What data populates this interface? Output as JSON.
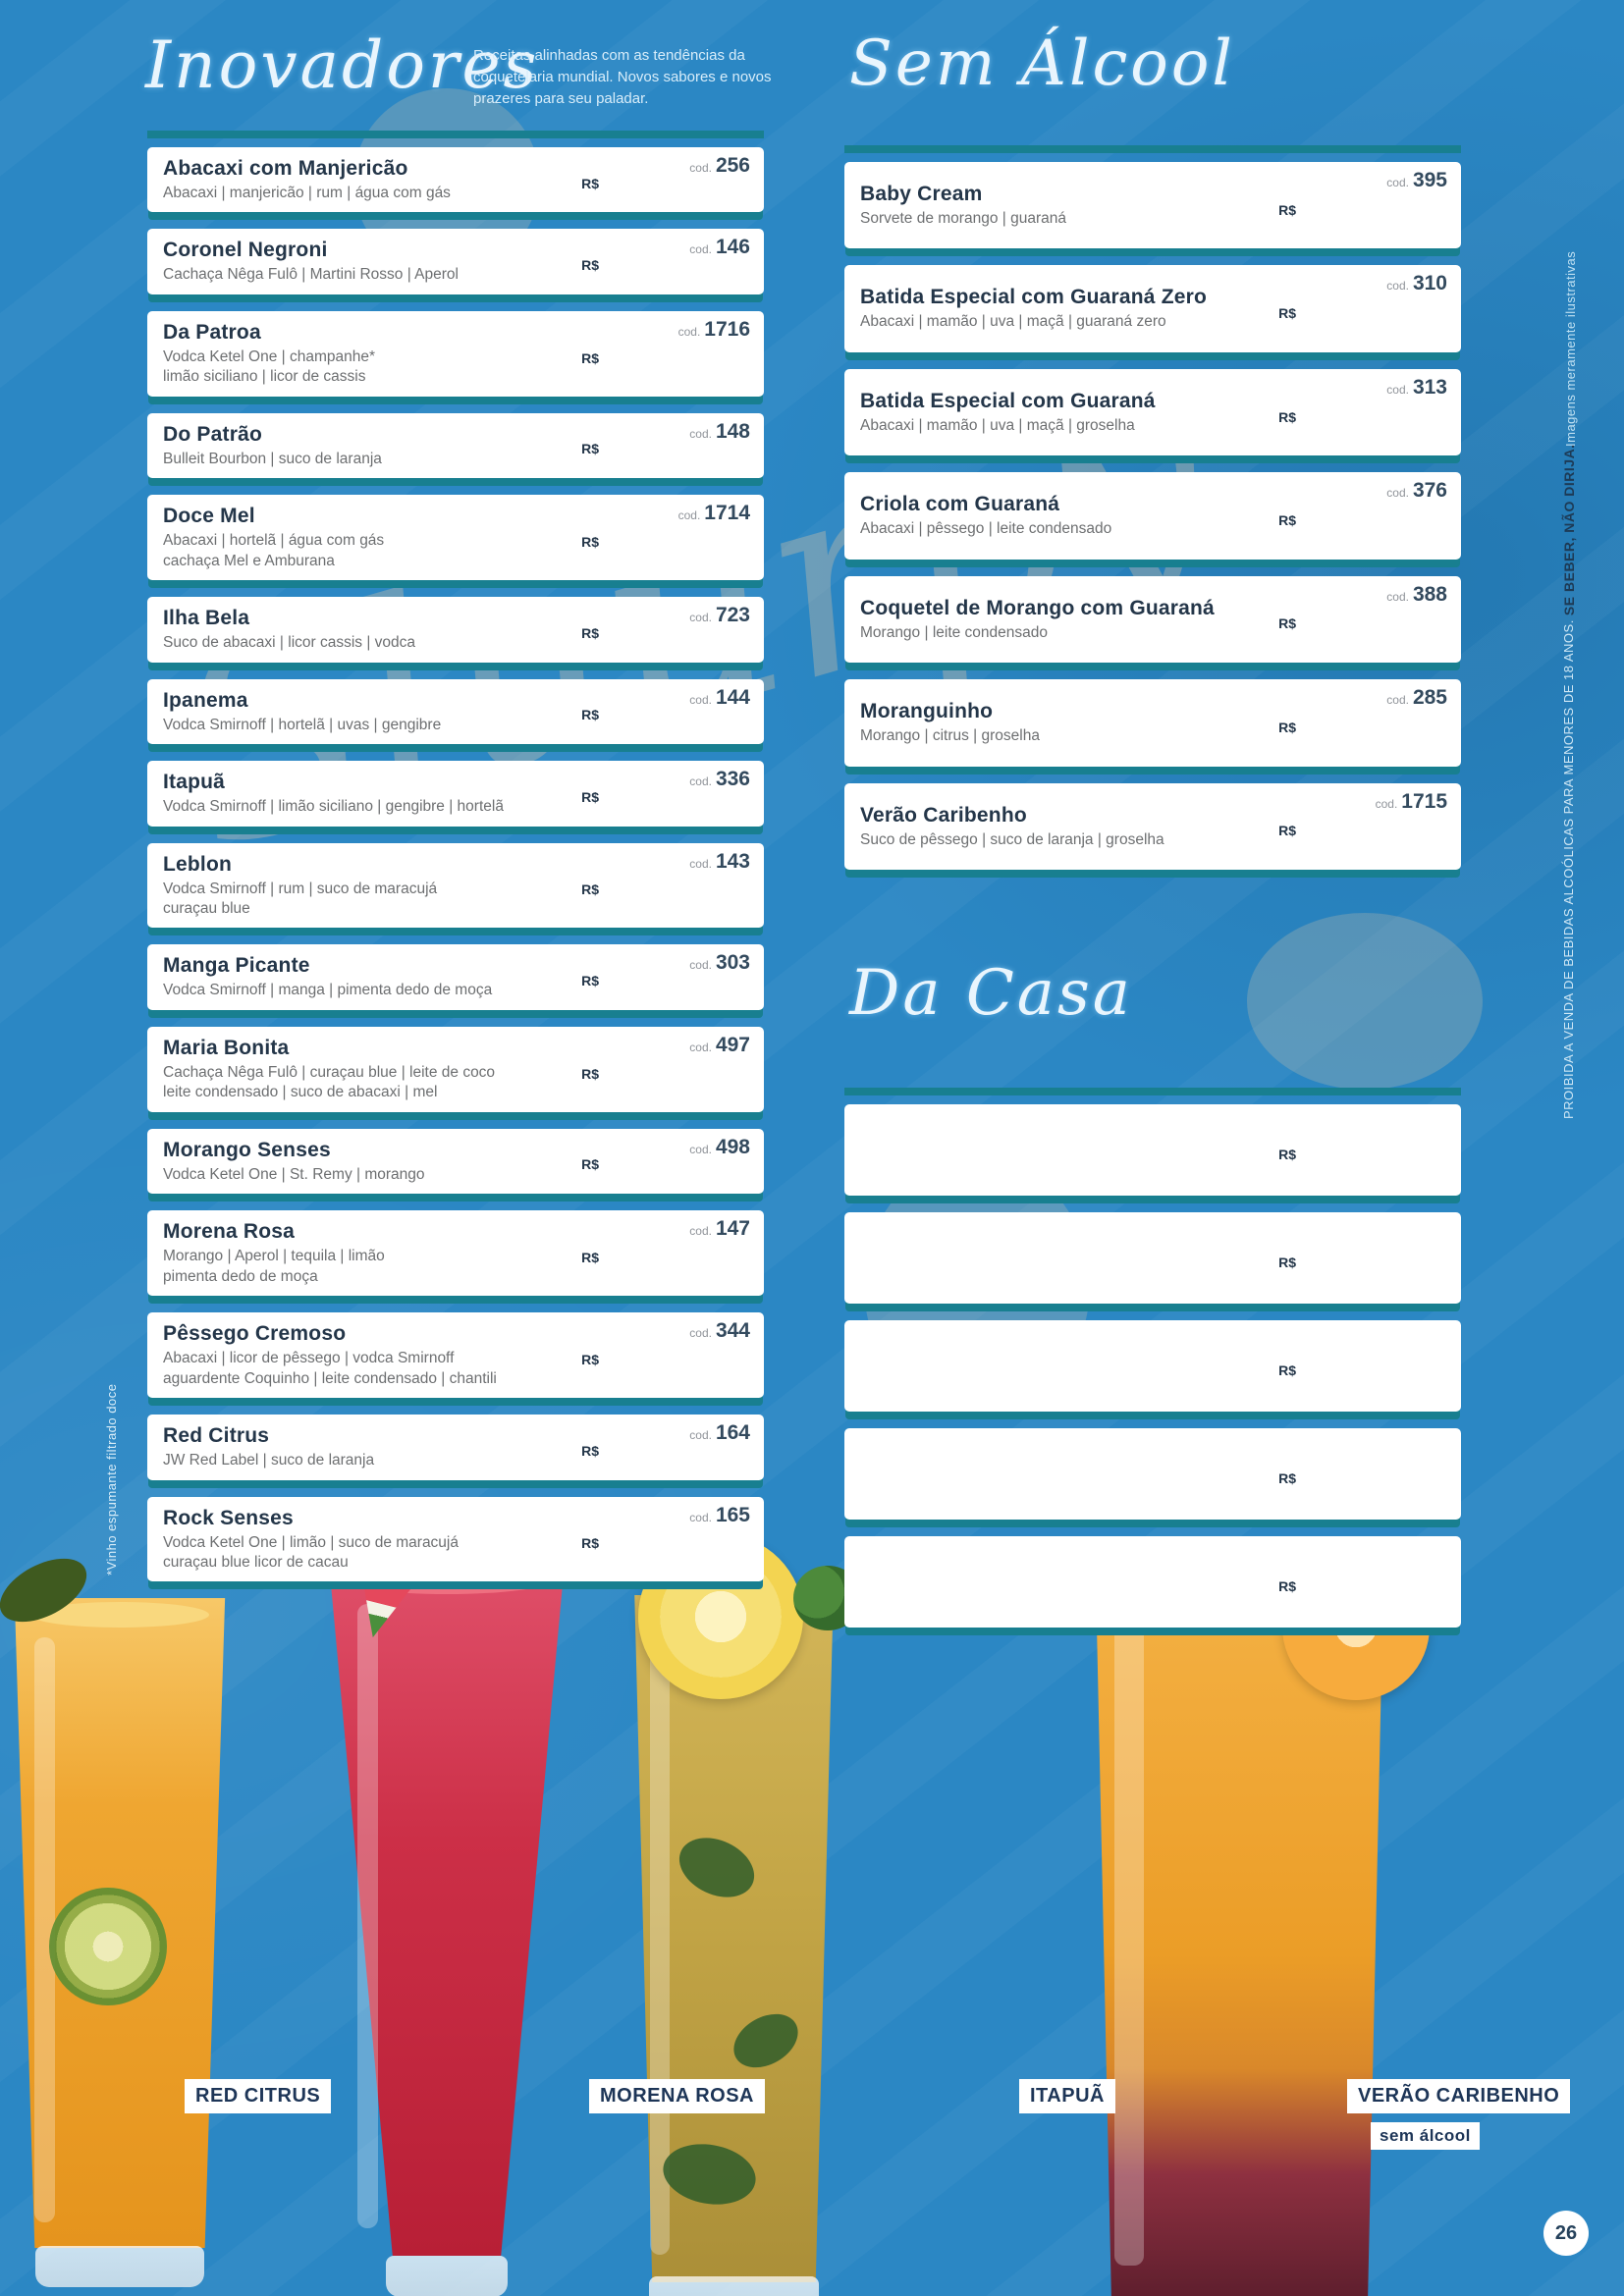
{
  "page": {
    "number": "26",
    "background_color": "#2b87c4",
    "accent_teal": "#187f90",
    "title_color": "#243649",
    "watermark": "Sluurpy"
  },
  "left_margin_note": "*Vinho espumante filtrado doce",
  "right_margin": {
    "top_note": "Imagens meramente ilustrativas",
    "disclaimer_regular": "PROIBIDA A VENDA DE BEBIDAS ALCOÓLICAS PARA MENORES DE 18 ANOS. ",
    "disclaimer_bold": "SE BEBER, NÃO DIRIJA."
  },
  "sections": {
    "inovadores": {
      "title": "Inovadores",
      "intro": "Receitas alinhadas com as tendências da coquetelaria mundial. Novos sabores e novos prazeres para seu paladar.",
      "price_label": "R$",
      "cod_label": "cod.",
      "items": [
        {
          "name": "Abacaxi com Manjericão",
          "cod": "256",
          "desc": [
            "Abacaxi | manjericão | rum | água com gás"
          ]
        },
        {
          "name": "Coronel Negroni",
          "cod": "146",
          "desc": [
            "Cachaça Nêga Fulô | Martini Rosso | Aperol"
          ]
        },
        {
          "name": "Da Patroa",
          "cod": "1716",
          "desc": [
            "Vodca Ketel One | champanhe*",
            "limão siciliano | licor de cassis"
          ]
        },
        {
          "name": "Do Patrão",
          "cod": "148",
          "desc": [
            "Bulleit Bourbon | suco de laranja"
          ]
        },
        {
          "name": "Doce Mel",
          "cod": "1714",
          "desc": [
            "Abacaxi | hortelã | água com gás",
            "cachaça Mel e Amburana"
          ]
        },
        {
          "name": "Ilha Bela",
          "cod": "723",
          "desc": [
            "Suco de abacaxi | licor cassis | vodca"
          ]
        },
        {
          "name": "Ipanema",
          "cod": "144",
          "desc": [
            "Vodca Smirnoff | hortelã | uvas | gengibre"
          ]
        },
        {
          "name": "Itapuã",
          "cod": "336",
          "desc": [
            "Vodca Smirnoff | limão siciliano | gengibre | hortelã"
          ]
        },
        {
          "name": "Leblon",
          "cod": "143",
          "desc": [
            "Vodca Smirnoff | rum | suco de maracujá",
            "curaçau blue"
          ]
        },
        {
          "name": "Manga Picante",
          "cod": "303",
          "desc": [
            "Vodca Smirnoff | manga | pimenta dedo de moça"
          ]
        },
        {
          "name": "Maria Bonita",
          "cod": "497",
          "desc": [
            "Cachaça Nêga Fulô | curaçau blue | leite de coco",
            "leite condensado | suco de abacaxi | mel"
          ]
        },
        {
          "name": "Morango Senses",
          "cod": "498",
          "desc": [
            "Vodca Ketel One | St. Remy | morango"
          ]
        },
        {
          "name": "Morena Rosa",
          "cod": "147",
          "desc": [
            "Morango | Aperol | tequila | limão",
            "pimenta dedo de moça"
          ]
        },
        {
          "name": "Pêssego Cremoso",
          "cod": "344",
          "desc": [
            "Abacaxi | licor de pêssego | vodca Smirnoff",
            "aguardente Coquinho | leite condensado | chantili"
          ]
        },
        {
          "name": "Red Citrus",
          "cod": "164",
          "desc": [
            "JW Red Label | suco de laranja"
          ]
        },
        {
          "name": "Rock Senses",
          "cod": "165",
          "desc": [
            "Vodca Ketel One | limão | suco de maracujá",
            "curaçau blue licor de cacau"
          ]
        }
      ]
    },
    "sem_alcool": {
      "title": "Sem Álcool",
      "price_label": "R$",
      "cod_label": "cod.",
      "items": [
        {
          "name": "Baby Cream",
          "cod": "395",
          "desc": [
            "Sorvete de morango | guaraná"
          ]
        },
        {
          "name": "Batida Especial com Guaraná Zero",
          "cod": "310",
          "desc": [
            "Abacaxi | mamão | uva | maçã | guaraná zero"
          ]
        },
        {
          "name": "Batida Especial com Guaraná",
          "cod": "313",
          "desc": [
            "Abacaxi | mamão | uva | maçã | groselha"
          ]
        },
        {
          "name": "Criola com Guaraná",
          "cod": "376",
          "desc": [
            "Abacaxi | pêssego | leite condensado"
          ]
        },
        {
          "name": "Coquetel de Morango com Guaraná",
          "cod": "388",
          "desc": [
            "Morango | leite condensado"
          ]
        },
        {
          "name": "Moranguinho",
          "cod": "285",
          "desc": [
            "Morango | citrus | groselha"
          ]
        },
        {
          "name": "Verão Caribenho",
          "cod": "1715",
          "desc": [
            "Suco de pêssego | suco de laranja | groselha"
          ]
        }
      ]
    },
    "da_casa": {
      "title": "Da Casa",
      "price_label": "R$",
      "rows": 5
    }
  },
  "photos": [
    {
      "label": "RED CITRUS"
    },
    {
      "label": "MORENA ROSA"
    },
    {
      "label": "ITAPUÃ"
    },
    {
      "label": "VERÃO CARIBENHO",
      "sublabel": "sem álcool"
    }
  ]
}
